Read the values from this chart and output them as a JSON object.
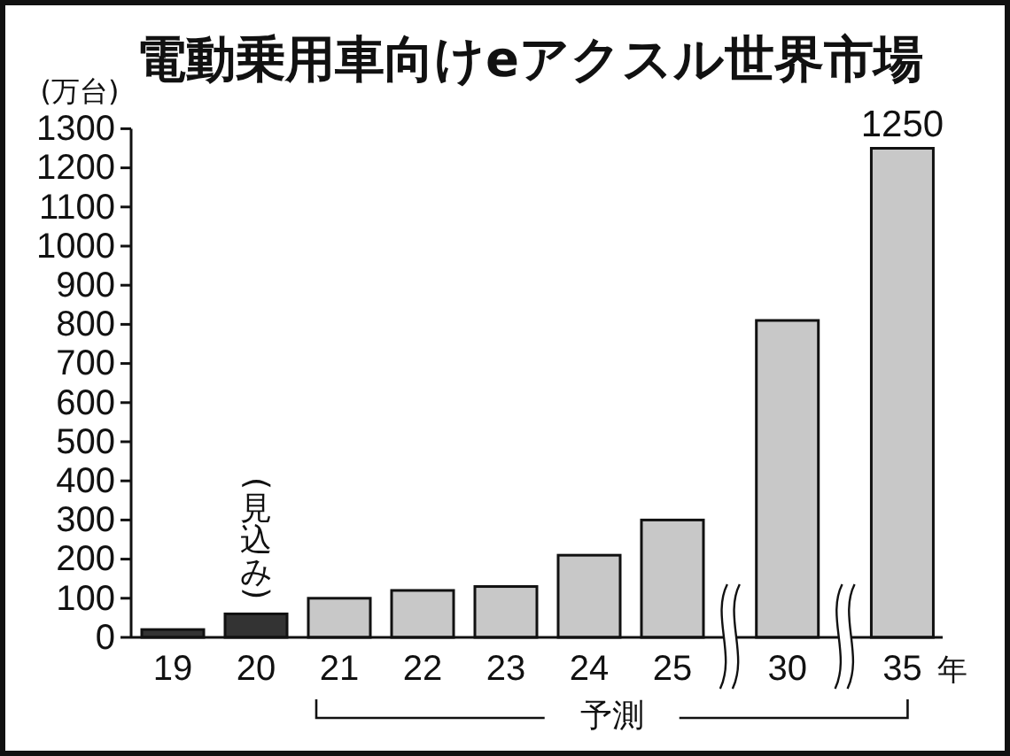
{
  "chart_data": {
    "type": "bar",
    "title": "電動乗用車向けeアクスル世界市場",
    "ylabel": "(万台)",
    "xlabel": "年",
    "categories": [
      "19",
      "20",
      "21",
      "22",
      "23",
      "24",
      "25",
      "30",
      "35"
    ],
    "values": [
      20,
      60,
      100,
      120,
      130,
      210,
      300,
      810,
      1250
    ],
    "colors": [
      "#333333",
      "#333333",
      "#c8c8c8",
      "#c8c8c8",
      "#c8c8c8",
      "#c8c8c8",
      "#c8c8c8",
      "#c8c8c8",
      "#c8c8c8"
    ],
    "value_labels": [
      null,
      null,
      null,
      null,
      null,
      null,
      null,
      null,
      "1250"
    ],
    "ylim": [
      0,
      1300
    ],
    "yticks": [
      0,
      100,
      200,
      300,
      400,
      500,
      600,
      700,
      800,
      900,
      1000,
      1100,
      1200,
      1300
    ],
    "annotations": [
      {
        "text": "(見込み)",
        "x": "20",
        "y": 60
      },
      "予測"
    ]
  }
}
